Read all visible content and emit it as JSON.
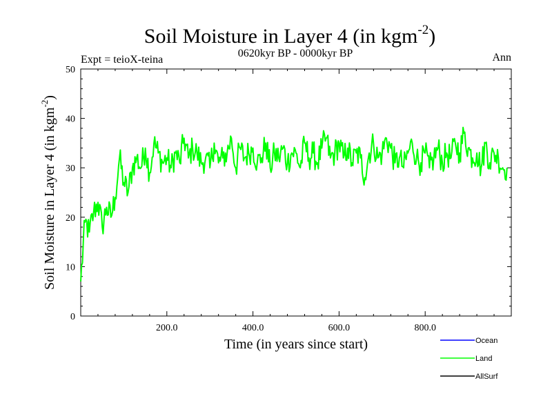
{
  "header": {
    "title_main": "Soil Moisture in Layer 4 (in kgm",
    "title_sup": "-2",
    "title_end": ")",
    "subtitle": "0620kyr BP - 0000kyr BP",
    "expt": "Expt = teioX-teina",
    "season": "Ann"
  },
  "chart_data": {
    "type": "line",
    "title": "Soil Moisture in Layer 4 (in kgm-2)",
    "subtitle": "0620kyr BP - 0000kyr BP",
    "xlabel": "Time (in years since start)",
    "ylabel_main": "Soil Moisture in Layer 4 (in kgm",
    "ylabel_sup": "-2",
    "ylabel_end": ")",
    "xlim": [
      0,
      1000
    ],
    "ylim": [
      0,
      50
    ],
    "x_ticks": [
      200,
      400,
      600,
      800
    ],
    "x_tick_labels": [
      "200.0",
      "400.0",
      "600.0",
      "800.0"
    ],
    "y_ticks": [
      0,
      10,
      20,
      30,
      40,
      50
    ],
    "y_tick_labels": [
      "0",
      "10",
      "20",
      "30",
      "40",
      "50"
    ],
    "legend": [
      "Ocean",
      "Land",
      "AllSurf"
    ],
    "series": [
      {
        "name": "Ocean",
        "color": "#0000ff",
        "values": []
      },
      {
        "name": "Land",
        "color": "#00ff00",
        "x_step": 10,
        "values": [
          7,
          19,
          17,
          21,
          23,
          18,
          22,
          20,
          24,
          32,
          27,
          25,
          30,
          32,
          30,
          34,
          29,
          35,
          33,
          31,
          32,
          30,
          33,
          31,
          36,
          32,
          34,
          33,
          31,
          32,
          30,
          35,
          31,
          32,
          33,
          36,
          30,
          34,
          32,
          33,
          34,
          31,
          32,
          35,
          30,
          33,
          32,
          34,
          31,
          33,
          33,
          30,
          35,
          32,
          33,
          31,
          34,
          36,
          32,
          33,
          35,
          32,
          34,
          31,
          33,
          32,
          28,
          33,
          35,
          32,
          33,
          36,
          34,
          31,
          32,
          30,
          33,
          35,
          32,
          31,
          33,
          30,
          32,
          34,
          31,
          33,
          32,
          35,
          33,
          37,
          34,
          32,
          33,
          30,
          35,
          31,
          33,
          32,
          30,
          30
        ]
      },
      {
        "name": "AllSurf",
        "color": "#000000",
        "values": []
      }
    ]
  }
}
